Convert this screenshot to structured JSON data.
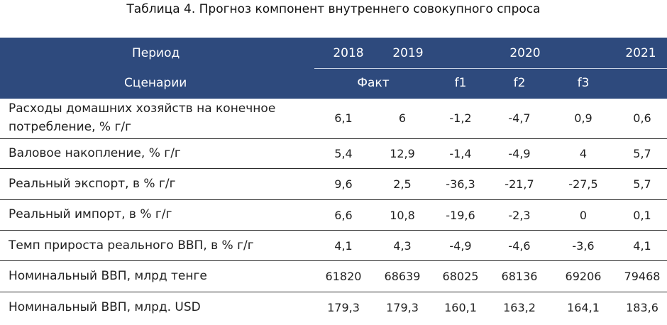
{
  "caption": "Таблица 4. Прогноз компонент внутреннего совокупного спроса",
  "header": {
    "period_label": "Период",
    "scenarios_label": "Сценарии",
    "years": [
      "2018",
      "2019",
      "2020",
      "2021"
    ],
    "fact_label": "Факт",
    "scenarios": [
      "f1",
      "f2",
      "f3"
    ]
  },
  "rows": [
    {
      "label_lines": [
        "Расходы домашних хозяйств на конечное",
        "потребление, % г/г"
      ],
      "values": [
        "6,1",
        "6",
        "-1,2",
        "-4,7",
        "0,9",
        "0,6"
      ]
    },
    {
      "label_lines": [
        "Валовое накопление, % г/г"
      ],
      "values": [
        "5,4",
        "12,9",
        "-1,4",
        "-4,9",
        "4",
        "5,7"
      ]
    },
    {
      "label_lines": [
        "Реальный экспорт, в % г/г"
      ],
      "values": [
        "9,6",
        "2,5",
        "-36,3",
        "-21,7",
        "-27,5",
        "5,7"
      ]
    },
    {
      "label_lines": [
        "Реальный импорт, в % г/г"
      ],
      "values": [
        "6,6",
        "10,8",
        "-19,6",
        "-2,3",
        "0",
        "0,1"
      ]
    },
    {
      "label_lines": [
        "Темп прироста реального ВВП, в % г/г"
      ],
      "values": [
        "4,1",
        "4,3",
        "-4,9",
        "-4,6",
        "-3,6",
        "4,1"
      ]
    },
    {
      "label_lines": [
        "Номинальный ВВП, млрд тенге"
      ],
      "values": [
        "61820",
        "68639",
        "68025",
        "68136",
        "69206",
        "79468"
      ]
    },
    {
      "label_lines": [
        "Номинальный ВВП, млрд. USD"
      ],
      "values": [
        "179,3",
        "179,3",
        "160,1",
        "163,2",
        "164,1",
        "183,6"
      ]
    }
  ]
}
